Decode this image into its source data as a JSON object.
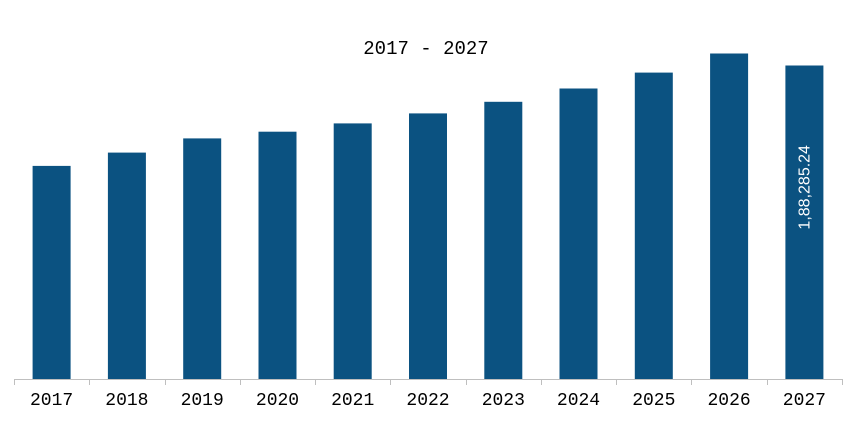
{
  "chart_data": {
    "type": "bar",
    "title": "2017 - 2027",
    "categories": [
      "2017",
      "2018",
      "2019",
      "2020",
      "2021",
      "2022",
      "2023",
      "2024",
      "2025",
      "2026",
      "2027"
    ],
    "values": [
      128000,
      136000,
      144500,
      148500,
      153500,
      159500,
      166500,
      174500,
      184000,
      195500,
      188285.24
    ],
    "data_labels": [
      "",
      "",
      "",
      "",
      "",
      "",
      "",
      "",
      "",
      "",
      "1,88,285.24"
    ],
    "ylim": [
      0,
      200000
    ],
    "grid": false,
    "legend": "none",
    "bar_color": "#0B5281",
    "label_color": "#ffffff",
    "axis_color": "#BFBFBF",
    "text_color": "#000000"
  }
}
